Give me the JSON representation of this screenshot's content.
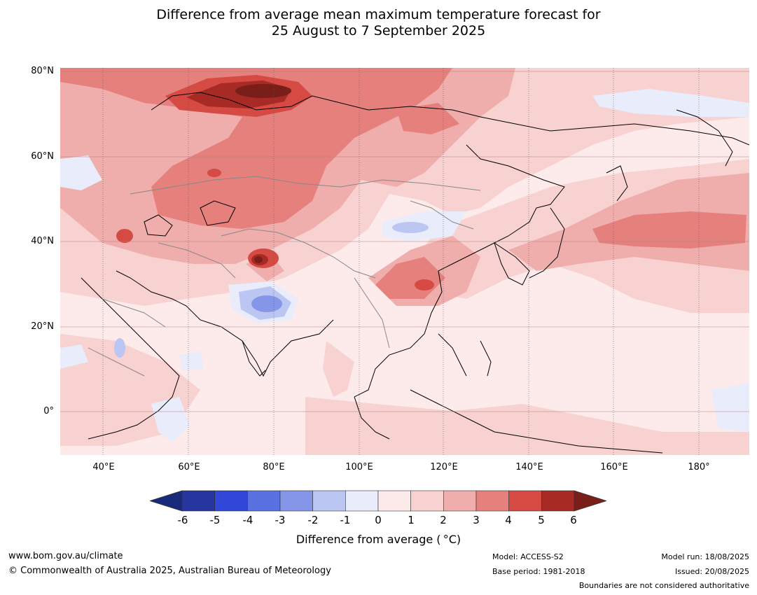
{
  "title": {
    "line1": "Difference from average mean maximum temperature forecast for",
    "line2": "25 August to 7 September 2025"
  },
  "axes": {
    "lat_labels": [
      "80°N",
      "60°N",
      "40°N",
      "20°N",
      "0°"
    ],
    "lon_labels": [
      "40°E",
      "60°E",
      "80°E",
      "100°E",
      "120°E",
      "140°E",
      "160°E",
      "180°"
    ],
    "lon_range": [
      30,
      191
    ],
    "lat_range": [
      -10,
      81
    ]
  },
  "colorbar": {
    "label": "Difference from average ( °C)",
    "ticks": [
      "-6",
      "-5",
      "-4",
      "-3",
      "-2",
      "-1",
      "0",
      "1",
      "2",
      "3",
      "4",
      "5",
      "6"
    ],
    "colors": [
      "#26369f",
      "#3147d9",
      "#5a71e2",
      "#8596e8",
      "#bcc6f3",
      "#e8ecfb",
      "#fdeaea",
      "#f7d2d1",
      "#efadac",
      "#e5807d",
      "#d54a43",
      "#a82a24"
    ],
    "under_color": "#1a2a7a",
    "over_color": "#7a1e1a"
  },
  "footer": {
    "website": "www.bom.gov.au/climate",
    "copyright": "© Commonwealth of Australia 2025, Australian Bureau of Meteorology",
    "model": "Model: ACCESS-S2",
    "base_period": "Base period: 1981-2018",
    "model_run": "Model run: 18/08/2025",
    "issued": "Issued: 20/08/2025",
    "disclaimer": "Boundaries are not considered authoritative"
  }
}
